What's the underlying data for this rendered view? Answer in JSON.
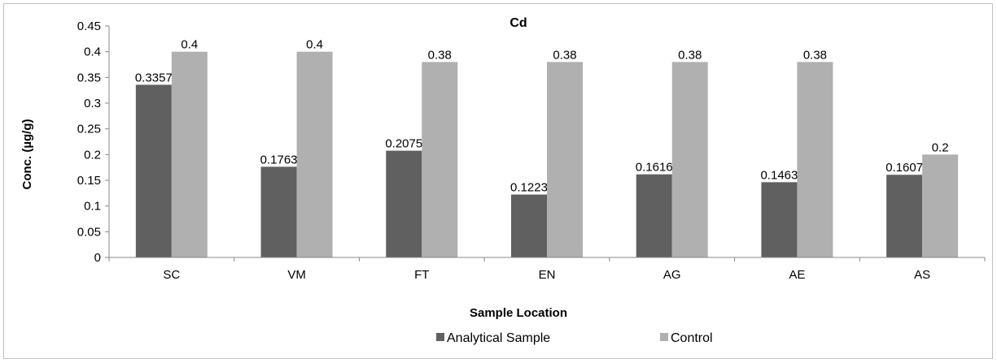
{
  "chart_data": {
    "type": "bar",
    "title": "Cd",
    "xlabel": "Sample Location",
    "ylabel": "Conc. (µg/g)",
    "categories": [
      "SC",
      "VM",
      "FT",
      "EN",
      "AG",
      "AE",
      "AS"
    ],
    "series": [
      {
        "name": "Analytical Sample",
        "color": "#606060",
        "values": [
          0.3357,
          0.1763,
          0.2075,
          0.1223,
          0.1616,
          0.1463,
          0.1607
        ],
        "labels": [
          "0.3357",
          "0.1763",
          "0.2075",
          "0.1223",
          "0.1616",
          "0.1463",
          "0.1607"
        ]
      },
      {
        "name": "Control",
        "color": "#b0b0b0",
        "values": [
          0.4,
          0.4,
          0.38,
          0.38,
          0.38,
          0.38,
          0.2
        ],
        "labels": [
          "0.4",
          "0.4",
          "0.38",
          "0.38",
          "0.38",
          "0.38",
          "0.2"
        ]
      }
    ],
    "ylim": [
      0,
      0.45
    ],
    "yticks": [
      "0",
      "0.05",
      "0.1",
      "0.15",
      "0.2",
      "0.25",
      "0.3",
      "0.35",
      "0.4",
      "0.45"
    ],
    "grid": false,
    "legend_position": "bottom"
  }
}
